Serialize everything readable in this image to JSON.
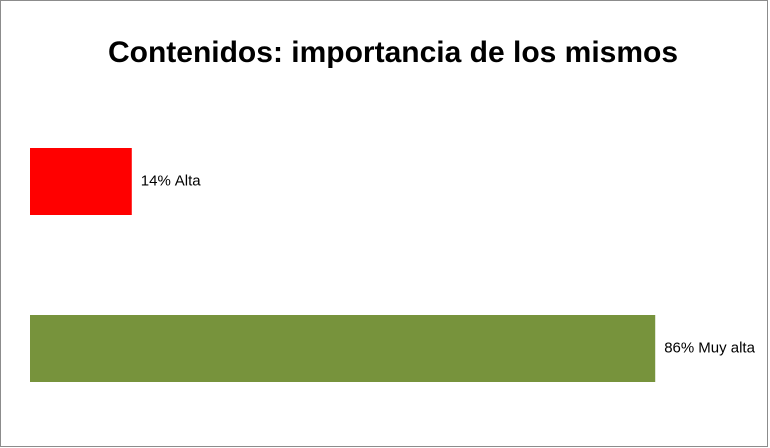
{
  "chart_data": {
    "type": "hbar",
    "title": "Contenidos: importancia de los mismos",
    "categories": [
      "Alta",
      "Muy alta"
    ],
    "values": [
      14,
      86
    ],
    "value_labels": [
      "14%",
      "86%"
    ],
    "colors": [
      "#ff0000",
      "#77933c"
    ]
  }
}
